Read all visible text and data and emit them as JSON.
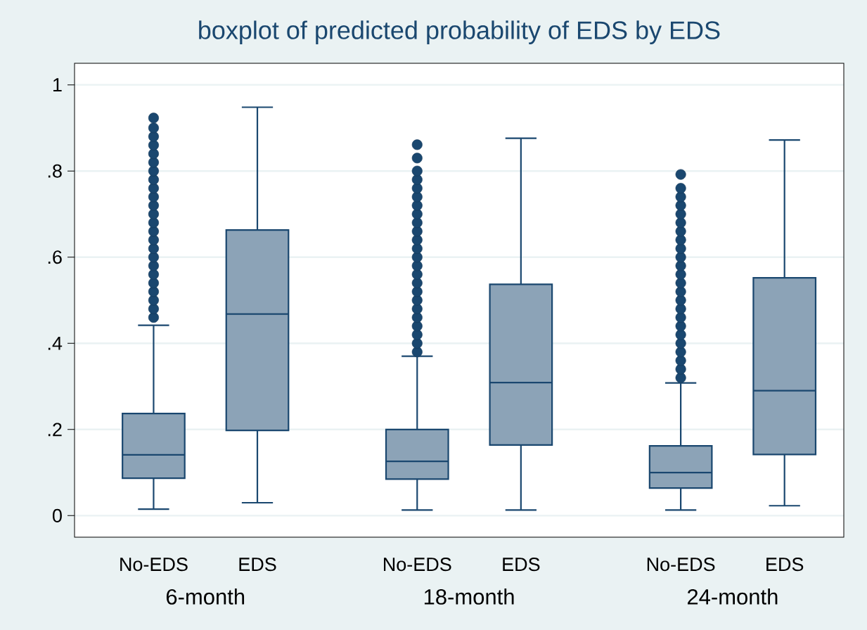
{
  "chart_data": {
    "type": "box",
    "title": "boxplot of predicted probability of EDS by EDS",
    "categories": [
      "No-EDS",
      "EDS",
      "No-EDS",
      "EDS",
      "No-EDS",
      "EDS"
    ],
    "annotations": [
      "6-month",
      "18-month",
      "24-month"
    ],
    "boxes": [
      {
        "low": 0.015,
        "q1": 0.087,
        "median": 0.141,
        "q3": 0.237,
        "high": 0.442,
        "outliers": [
          0.46,
          0.48,
          0.5,
          0.52,
          0.54,
          0.56,
          0.58,
          0.6,
          0.62,
          0.64,
          0.66,
          0.68,
          0.7,
          0.72,
          0.74,
          0.76,
          0.78,
          0.8,
          0.82,
          0.84,
          0.86,
          0.88,
          0.9,
          0.923
        ]
      },
      {
        "low": 0.03,
        "q1": 0.198,
        "median": 0.468,
        "q3": 0.663,
        "high": 0.948
      },
      {
        "low": 0.013,
        "q1": 0.085,
        "median": 0.126,
        "q3": 0.2,
        "high": 0.37,
        "outliers": [
          0.38,
          0.4,
          0.42,
          0.44,
          0.46,
          0.48,
          0.5,
          0.52,
          0.54,
          0.56,
          0.58,
          0.6,
          0.62,
          0.64,
          0.66,
          0.68,
          0.7,
          0.72,
          0.74,
          0.76,
          0.78,
          0.8,
          0.83,
          0.861
        ]
      },
      {
        "low": 0.013,
        "q1": 0.164,
        "median": 0.309,
        "q3": 0.537,
        "high": 0.876
      },
      {
        "low": 0.013,
        "q1": 0.064,
        "median": 0.1,
        "q3": 0.162,
        "high": 0.308,
        "outliers": [
          0.32,
          0.34,
          0.36,
          0.38,
          0.4,
          0.42,
          0.44,
          0.46,
          0.48,
          0.5,
          0.52,
          0.54,
          0.56,
          0.58,
          0.6,
          0.62,
          0.64,
          0.66,
          0.68,
          0.7,
          0.72,
          0.74,
          0.76,
          0.792
        ]
      },
      {
        "low": 0.023,
        "q1": 0.142,
        "median": 0.29,
        "q3": 0.552,
        "high": 0.872
      }
    ],
    "color": "#1a476f",
    "ylim": [
      -0.05,
      1.05
    ],
    "yticks": [
      {
        "value": 0,
        "label": "0"
      },
      {
        "value": 0.2,
        "label": ".2"
      },
      {
        "value": 0.4,
        "label": ".4"
      },
      {
        "value": 0.6,
        "label": ".6"
      },
      {
        "value": 0.8,
        "label": ".8"
      },
      {
        "value": 1,
        "label": "1"
      }
    ],
    "grid": "y",
    "marker": "circle"
  }
}
